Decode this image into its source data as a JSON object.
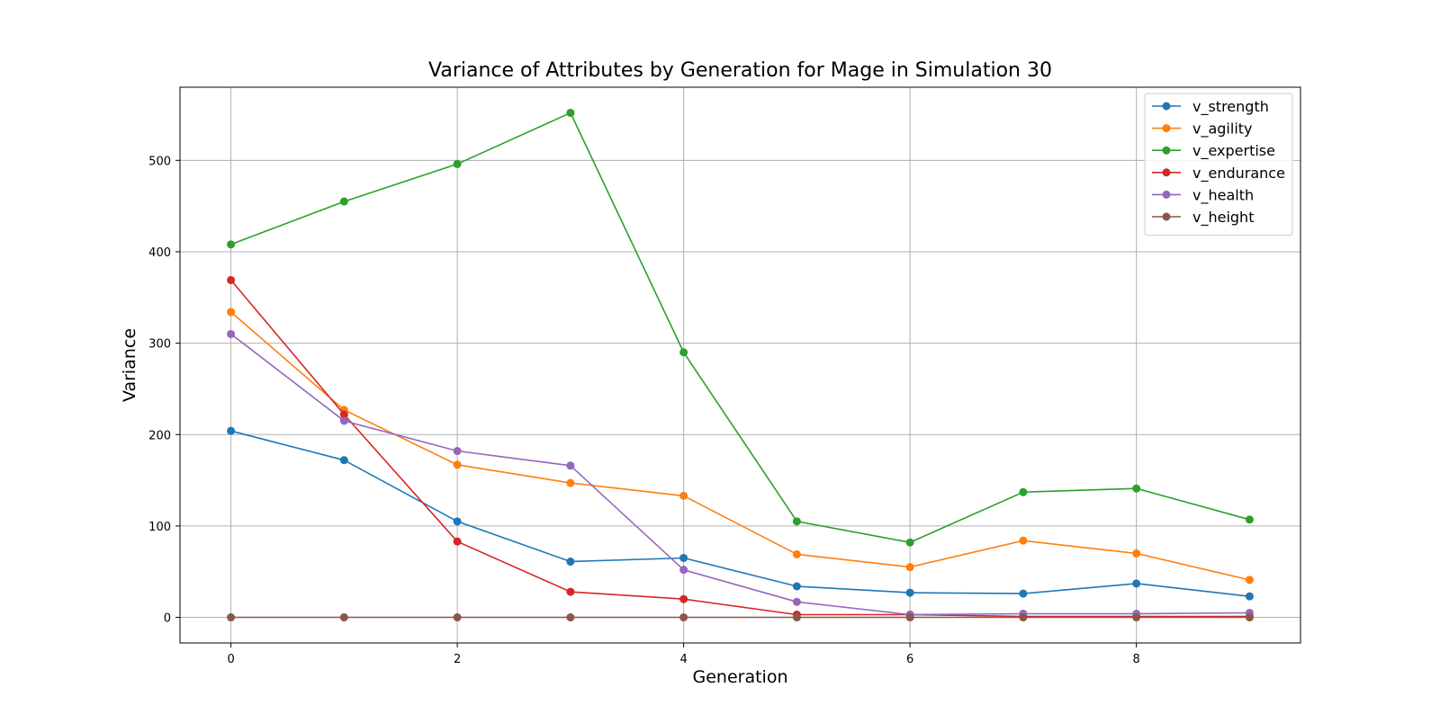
{
  "chart_data": {
    "type": "line",
    "title": "Variance of Attributes by Generation for Mage in Simulation 30",
    "xlabel": "Generation",
    "ylabel": "Variance",
    "x": [
      0,
      1,
      2,
      3,
      4,
      5,
      6,
      7,
      8,
      9
    ],
    "xlim": [
      -0.45,
      9.45
    ],
    "ylim": [
      -28,
      580
    ],
    "xticks": [
      0,
      2,
      4,
      6,
      8
    ],
    "yticks": [
      0,
      100,
      200,
      300,
      400,
      500
    ],
    "grid": true,
    "legend_position": "top-right",
    "marker": "circle",
    "series": [
      {
        "name": "v_strength",
        "color": "#1f77b4",
        "values": [
          204,
          172,
          105,
          61,
          65,
          34,
          27,
          26,
          37,
          23
        ]
      },
      {
        "name": "v_agility",
        "color": "#ff7f0e",
        "values": [
          334,
          227,
          167,
          147,
          133,
          69,
          55,
          84,
          70,
          41
        ]
      },
      {
        "name": "v_expertise",
        "color": "#2ca02c",
        "values": [
          408,
          455,
          496,
          552,
          290,
          105,
          82,
          137,
          141,
          107
        ]
      },
      {
        "name": "v_endurance",
        "color": "#d62728",
        "values": [
          369,
          222,
          83,
          28,
          20,
          3,
          3,
          1,
          1,
          1
        ]
      },
      {
        "name": "v_health",
        "color": "#9467bd",
        "values": [
          310,
          215,
          182,
          166,
          52,
          17,
          3,
          4,
          4,
          5
        ]
      },
      {
        "name": "v_height",
        "color": "#8c564b",
        "values": [
          0,
          0,
          0,
          0,
          0,
          0,
          0,
          0,
          0,
          0
        ]
      }
    ]
  }
}
